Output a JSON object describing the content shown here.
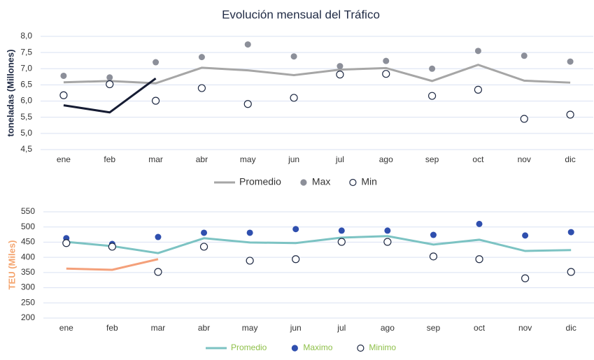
{
  "chart_data": [
    {
      "type": "line",
      "title": "Evolución mensual del Tráfico",
      "y_label": "toneladas (Millones)",
      "y_label_color": "#1f2a44",
      "legend_color": "#333333",
      "categories": [
        "ene",
        "feb",
        "mar",
        "abr",
        "may",
        "jun",
        "jul",
        "ago",
        "sep",
        "oct",
        "nov",
        "dic"
      ],
      "ylim": [
        4.5,
        8.0
      ],
      "yticks": [
        {
          "value": 4.5,
          "label": "4,5"
        },
        {
          "value": 5.0,
          "label": "5,0"
        },
        {
          "value": 5.5,
          "label": "5,5"
        },
        {
          "value": 6.0,
          "label": "6,0"
        },
        {
          "value": 6.5,
          "label": "6,5"
        },
        {
          "value": 7.0,
          "label": "7,0"
        },
        {
          "value": 7.5,
          "label": "7,5"
        },
        {
          "value": 8.0,
          "label": "8,0"
        }
      ],
      "grid": true,
      "legend": "bottom",
      "series": [
        {
          "name": "Promedio",
          "color": "#a6a6a6",
          "marker": "line",
          "values": [
            6.58,
            6.62,
            6.55,
            7.03,
            6.95,
            6.8,
            6.97,
            7.02,
            6.62,
            7.12,
            6.63,
            6.57
          ]
        },
        {
          "name": "Max",
          "color": "#8c8f99",
          "marker": "filled",
          "values": [
            6.78,
            6.73,
            7.2,
            7.36,
            7.75,
            7.38,
            7.08,
            7.24,
            7.0,
            7.55,
            7.4,
            7.22
          ]
        },
        {
          "name": "Min",
          "color": "#1f2a44",
          "marker": "open",
          "values": [
            6.18,
            6.52,
            6.01,
            6.4,
            5.91,
            6.1,
            6.82,
            6.84,
            6.16,
            6.35,
            5.45,
            5.58
          ]
        },
        {
          "color": "#161c33",
          "marker": "line",
          "values": [
            5.87,
            5.65,
            6.7,
            null,
            null,
            null,
            null,
            null,
            null,
            null,
            null,
            null
          ]
        }
      ]
    },
    {
      "type": "line",
      "y_label": "TEU (Miles)",
      "y_label_color": "#f4a46e",
      "legend_color": "#8fc04a",
      "categories": [
        "ene",
        "feb",
        "mar",
        "abr",
        "may",
        "jun",
        "jul",
        "ago",
        "sep",
        "oct",
        "nov",
        "dic"
      ],
      "ylim": [
        200,
        550
      ],
      "yticks": [
        200,
        250,
        300,
        350,
        400,
        450,
        500,
        550
      ],
      "grid": true,
      "legend": "bottom",
      "series": [
        {
          "name": "Promedio",
          "color": "#7cc3c3",
          "marker": "line",
          "values": [
            451,
            437,
            414,
            463,
            449,
            447,
            465,
            470,
            442,
            458,
            421,
            424
          ]
        },
        {
          "name": "Maximo",
          "color": "#2f4fae",
          "marker": "filled",
          "values": [
            463,
            444,
            467,
            481,
            481,
            493,
            488,
            488,
            474,
            510,
            472,
            483
          ]
        },
        {
          "name": "Minimo",
          "color": "#1f2a44",
          "marker": "open",
          "values": [
            447,
            435,
            352,
            435,
            389,
            394,
            451,
            451,
            403,
            394,
            331,
            352
          ]
        },
        {
          "color": "#f4a07a",
          "marker": "line",
          "values": [
            363,
            359,
            394,
            null,
            null,
            null,
            null,
            null,
            null,
            null,
            null,
            null
          ]
        }
      ]
    }
  ]
}
